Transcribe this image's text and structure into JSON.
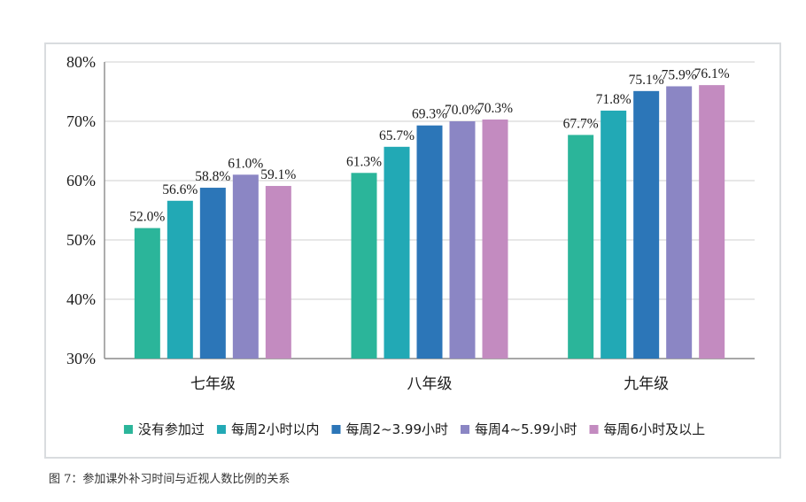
{
  "caption": "图 7：参加课外补习时间与近视人数比例的关系",
  "chart_data": {
    "type": "bar",
    "categories": [
      "七年级",
      "八年级",
      "九年级"
    ],
    "series": [
      {
        "name": "没有参加过",
        "color": "#2bb59a",
        "values": [
          52.0,
          61.3,
          67.7
        ],
        "labels": [
          "52.0%",
          "61.3%",
          "67.7%"
        ]
      },
      {
        "name": "每周2小时以内",
        "color": "#22a9b5",
        "values": [
          56.6,
          65.7,
          71.8
        ],
        "labels": [
          "56.6%",
          "65.7%",
          "71.8%"
        ]
      },
      {
        "name": "每周2~3.99小时",
        "color": "#2c76b8",
        "values": [
          58.8,
          69.3,
          75.1
        ],
        "labels": [
          "58.8%",
          "69.3%",
          "75.1%"
        ]
      },
      {
        "name": "每周4~5.99小时",
        "color": "#8b86c4",
        "values": [
          61.0,
          70.0,
          75.9
        ],
        "labels": [
          "61.0%",
          "70.0%",
          "75.9%"
        ]
      },
      {
        "name": "每周6小时及以上",
        "color": "#c38bc0",
        "values": [
          59.1,
          70.3,
          76.1
        ],
        "labels": [
          "59.1%",
          "70.3%",
          "76.1%"
        ]
      }
    ],
    "ylim": [
      30,
      80
    ],
    "yticks": [
      "30%",
      "40%",
      "50%",
      "60%",
      "70%",
      "80%"
    ],
    "ytick_values": [
      30,
      40,
      50,
      60,
      70,
      80
    ],
    "grid": true,
    "legend_position": "bottom"
  }
}
